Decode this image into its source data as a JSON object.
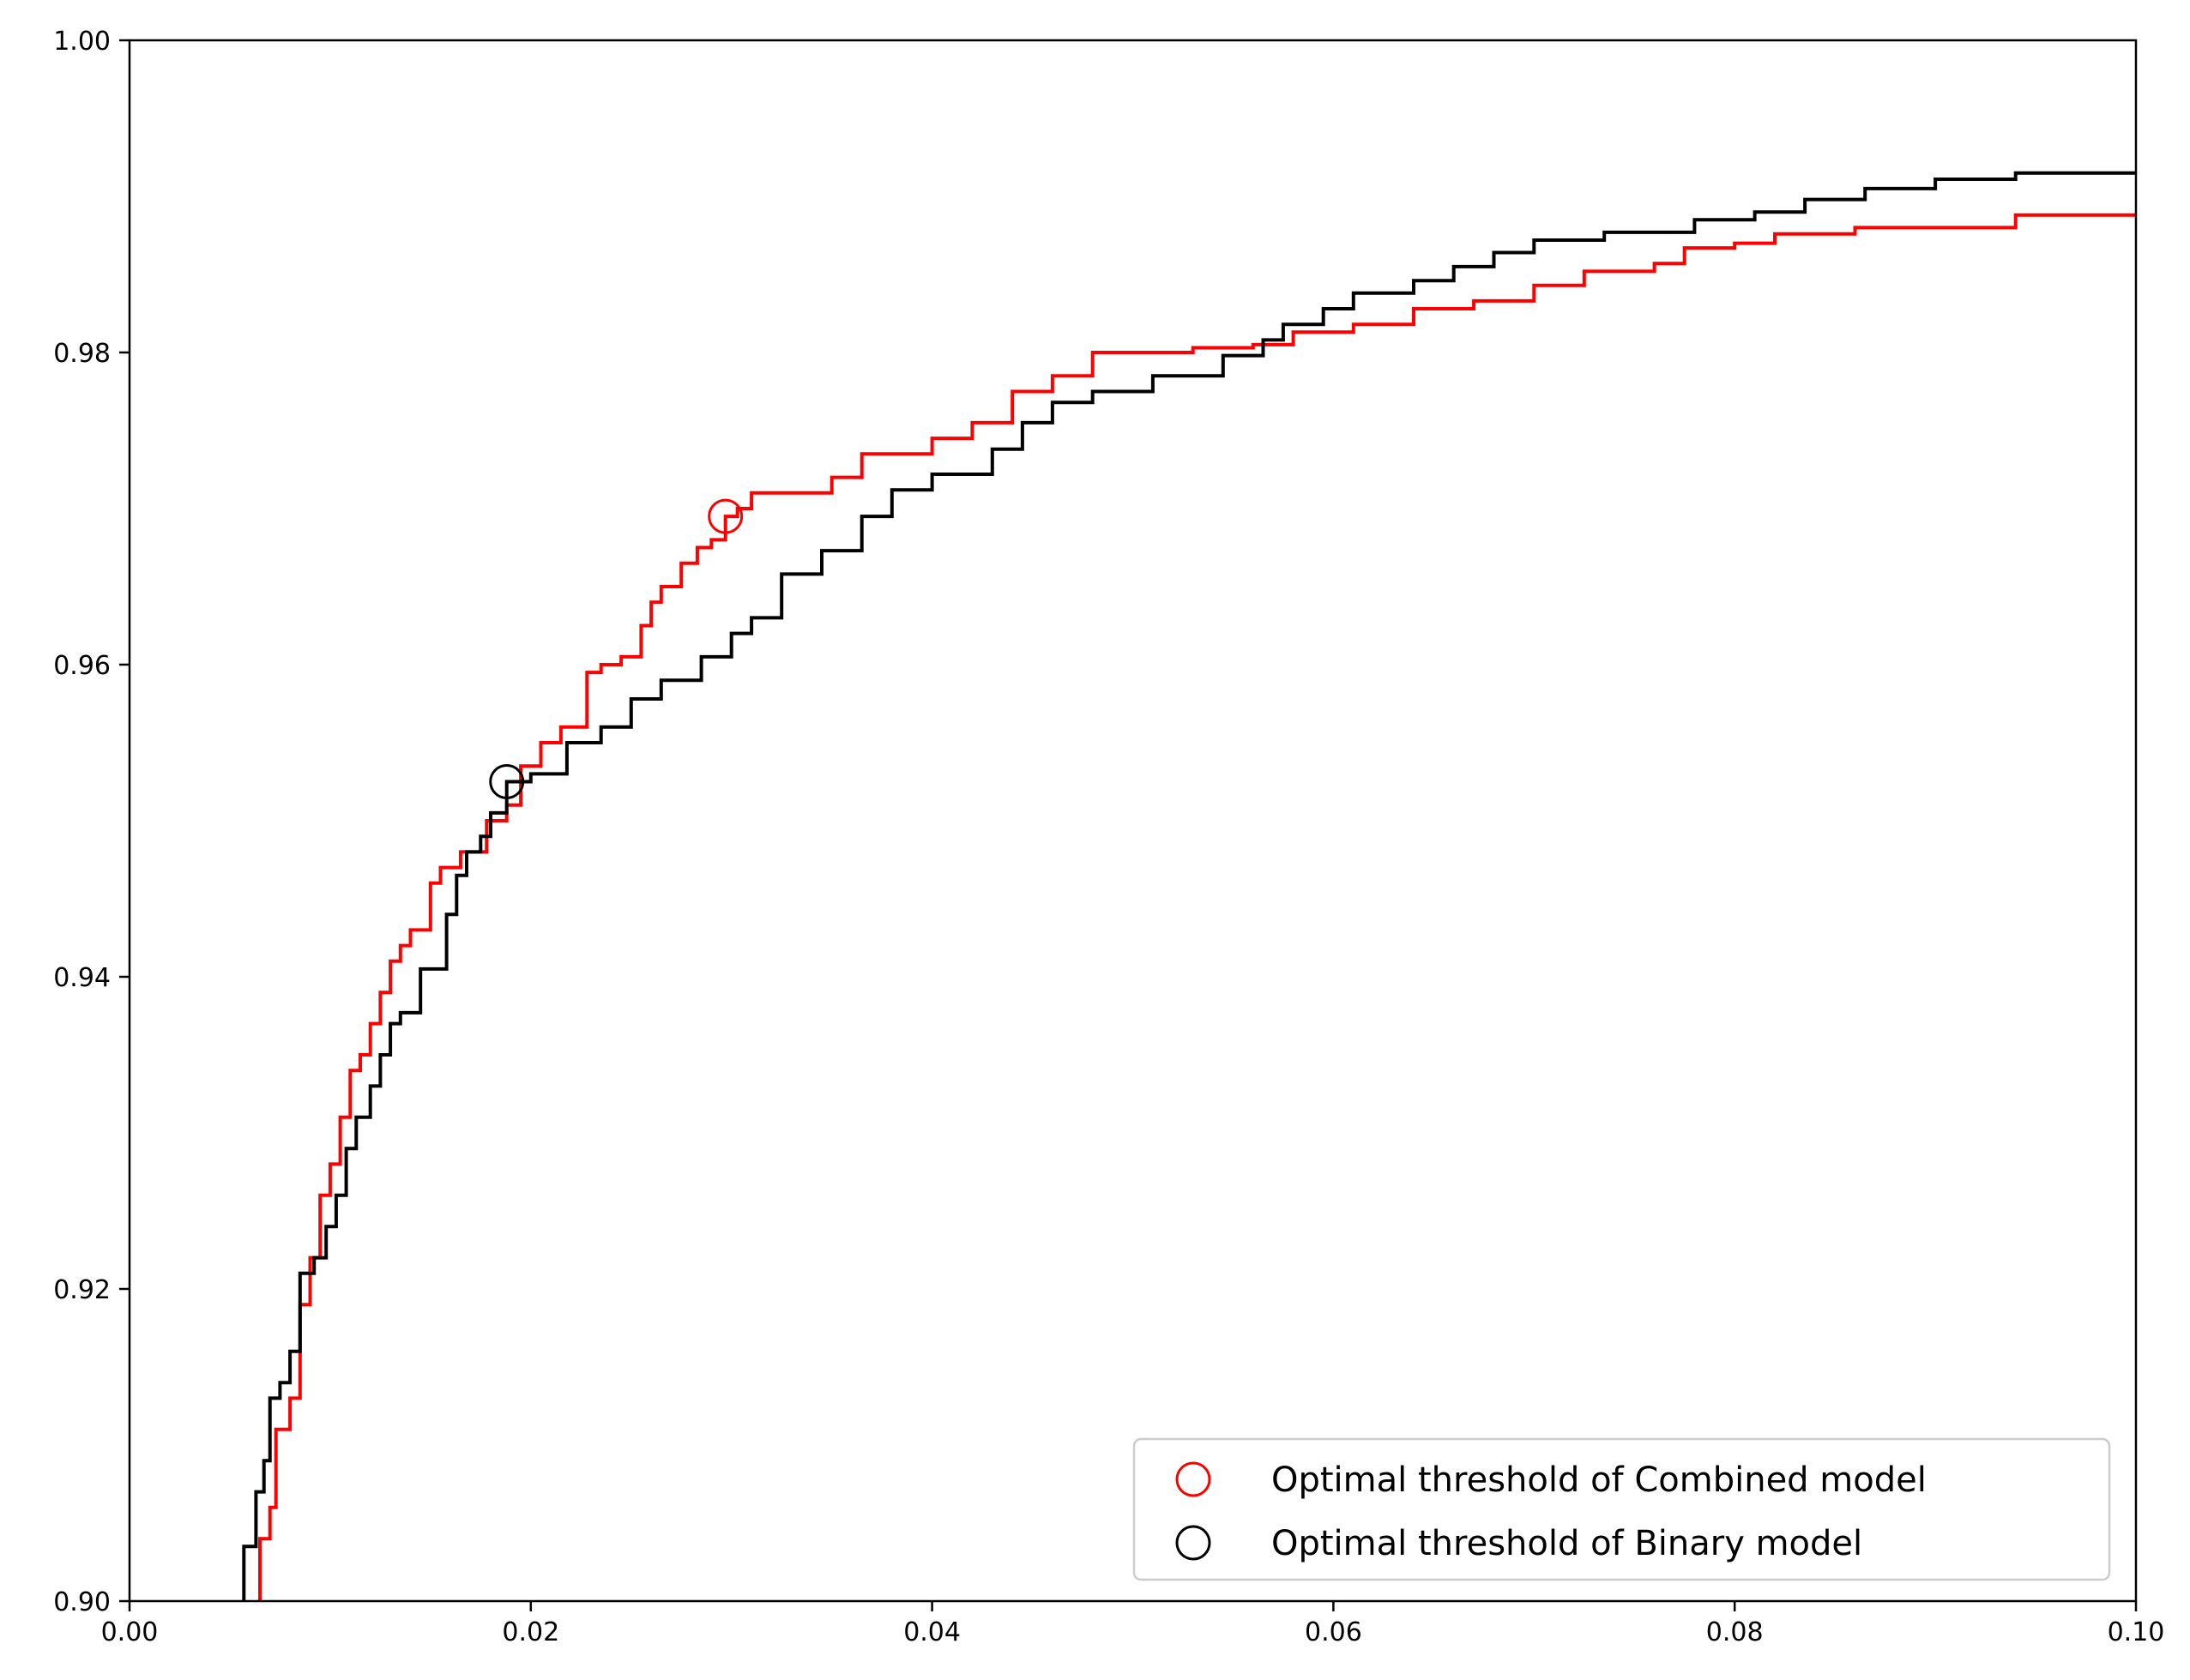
{
  "chart_data": {
    "type": "line",
    "title": "",
    "xlabel": "",
    "ylabel": "",
    "xlim": [
      0.0,
      0.1
    ],
    "ylim": [
      0.9,
      1.0
    ],
    "x_ticks": [
      0.0,
      0.02,
      0.04,
      0.06,
      0.08,
      0.1
    ],
    "x_tick_labels": [
      "0.00",
      "0.02",
      "0.04",
      "0.06",
      "0.08",
      "0.10"
    ],
    "y_ticks": [
      0.9,
      0.92,
      0.94,
      0.96,
      0.98,
      1.0
    ],
    "y_tick_labels": [
      "0.90",
      "0.92",
      "0.94",
      "0.96",
      "0.98",
      "1.00"
    ],
    "grid": false,
    "legend_position": "bottom-right",
    "step": true,
    "series": [
      {
        "color": "#ff0000",
        "points": [
          [
            0.0065,
            0.9
          ],
          [
            0.0065,
            0.904
          ],
          [
            0.007,
            0.904
          ],
          [
            0.007,
            0.906
          ],
          [
            0.0073,
            0.906
          ],
          [
            0.0073,
            0.911
          ],
          [
            0.008,
            0.911
          ],
          [
            0.008,
            0.913
          ],
          [
            0.0085,
            0.913
          ],
          [
            0.0085,
            0.919
          ],
          [
            0.009,
            0.919
          ],
          [
            0.009,
            0.922
          ],
          [
            0.0095,
            0.922
          ],
          [
            0.0095,
            0.926
          ],
          [
            0.01,
            0.926
          ],
          [
            0.01,
            0.928
          ],
          [
            0.0105,
            0.928
          ],
          [
            0.0105,
            0.931
          ],
          [
            0.011,
            0.931
          ],
          [
            0.011,
            0.934
          ],
          [
            0.0115,
            0.934
          ],
          [
            0.0115,
            0.935
          ],
          [
            0.012,
            0.935
          ],
          [
            0.012,
            0.937
          ],
          [
            0.0125,
            0.937
          ],
          [
            0.0125,
            0.939
          ],
          [
            0.013,
            0.939
          ],
          [
            0.013,
            0.941
          ],
          [
            0.0135,
            0.941
          ],
          [
            0.0135,
            0.942
          ],
          [
            0.014,
            0.942
          ],
          [
            0.014,
            0.943
          ],
          [
            0.015,
            0.943
          ],
          [
            0.015,
            0.946
          ],
          [
            0.0155,
            0.946
          ],
          [
            0.0155,
            0.947
          ],
          [
            0.0165,
            0.947
          ],
          [
            0.0165,
            0.948
          ],
          [
            0.0178,
            0.948
          ],
          [
            0.0178,
            0.95
          ],
          [
            0.0188,
            0.95
          ],
          [
            0.0188,
            0.951
          ],
          [
            0.0195,
            0.951
          ],
          [
            0.0195,
            0.9535
          ],
          [
            0.0205,
            0.9535
          ],
          [
            0.0205,
            0.955
          ],
          [
            0.0215,
            0.955
          ],
          [
            0.0215,
            0.956
          ],
          [
            0.0228,
            0.956
          ],
          [
            0.0228,
            0.957
          ],
          [
            0.0228,
            0.9595
          ],
          [
            0.0235,
            0.9595
          ],
          [
            0.0235,
            0.96
          ],
          [
            0.0245,
            0.96
          ],
          [
            0.0245,
            0.9605
          ],
          [
            0.0255,
            0.9605
          ],
          [
            0.0255,
            0.9625
          ],
          [
            0.026,
            0.9625
          ],
          [
            0.026,
            0.964
          ],
          [
            0.0265,
            0.964
          ],
          [
            0.0265,
            0.965
          ],
          [
            0.0275,
            0.965
          ],
          [
            0.0275,
            0.9665
          ],
          [
            0.0283,
            0.9665
          ],
          [
            0.0283,
            0.9675
          ],
          [
            0.029,
            0.9675
          ],
          [
            0.029,
            0.968
          ],
          [
            0.0297,
            0.968
          ],
          [
            0.0297,
            0.9695
          ],
          [
            0.0303,
            0.9695
          ],
          [
            0.0303,
            0.97
          ],
          [
            0.031,
            0.97
          ],
          [
            0.031,
            0.971
          ],
          [
            0.035,
            0.971
          ],
          [
            0.035,
            0.972
          ],
          [
            0.0365,
            0.972
          ],
          [
            0.0365,
            0.9735
          ],
          [
            0.04,
            0.9735
          ],
          [
            0.04,
            0.9745
          ],
          [
            0.042,
            0.9745
          ],
          [
            0.042,
            0.9755
          ],
          [
            0.044,
            0.9755
          ],
          [
            0.044,
            0.9775
          ],
          [
            0.046,
            0.9775
          ],
          [
            0.046,
            0.9785
          ],
          [
            0.048,
            0.9785
          ],
          [
            0.048,
            0.98
          ],
          [
            0.053,
            0.98
          ],
          [
            0.053,
            0.9803
          ],
          [
            0.056,
            0.9803
          ],
          [
            0.056,
            0.9805
          ],
          [
            0.058,
            0.9805
          ],
          [
            0.058,
            0.9813
          ],
          [
            0.061,
            0.9813
          ],
          [
            0.061,
            0.9818
          ],
          [
            0.064,
            0.9818
          ],
          [
            0.064,
            0.9828
          ],
          [
            0.067,
            0.9828
          ],
          [
            0.067,
            0.9833
          ],
          [
            0.07,
            0.9833
          ],
          [
            0.07,
            0.9843
          ],
          [
            0.0725,
            0.9843
          ],
          [
            0.0725,
            0.9852
          ],
          [
            0.076,
            0.9852
          ],
          [
            0.076,
            0.9857
          ],
          [
            0.0775,
            0.9857
          ],
          [
            0.0775,
            0.9867
          ],
          [
            0.08,
            0.9867
          ],
          [
            0.08,
            0.987
          ],
          [
            0.082,
            0.987
          ],
          [
            0.082,
            0.9876
          ],
          [
            0.086,
            0.9876
          ],
          [
            0.086,
            0.988
          ],
          [
            0.094,
            0.988
          ],
          [
            0.094,
            0.9888
          ],
          [
            0.1,
            0.9888
          ]
        ]
      },
      {
        "color": "#000000",
        "points": [
          [
            0.0057,
            0.9
          ],
          [
            0.0057,
            0.9035
          ],
          [
            0.0063,
            0.9035
          ],
          [
            0.0063,
            0.907
          ],
          [
            0.0067,
            0.907
          ],
          [
            0.0067,
            0.909
          ],
          [
            0.007,
            0.909
          ],
          [
            0.007,
            0.913
          ],
          [
            0.0075,
            0.913
          ],
          [
            0.0075,
            0.914
          ],
          [
            0.008,
            0.914
          ],
          [
            0.008,
            0.916
          ],
          [
            0.0085,
            0.916
          ],
          [
            0.0085,
            0.921
          ],
          [
            0.0092,
            0.921
          ],
          [
            0.0092,
            0.922
          ],
          [
            0.0098,
            0.922
          ],
          [
            0.0098,
            0.924
          ],
          [
            0.0103,
            0.924
          ],
          [
            0.0103,
            0.926
          ],
          [
            0.0108,
            0.926
          ],
          [
            0.0108,
            0.929
          ],
          [
            0.0113,
            0.929
          ],
          [
            0.0113,
            0.931
          ],
          [
            0.012,
            0.931
          ],
          [
            0.012,
            0.933
          ],
          [
            0.0125,
            0.933
          ],
          [
            0.0125,
            0.935
          ],
          [
            0.013,
            0.935
          ],
          [
            0.013,
            0.937
          ],
          [
            0.0135,
            0.937
          ],
          [
            0.0135,
            0.9377
          ],
          [
            0.0145,
            0.9377
          ],
          [
            0.0145,
            0.9405
          ],
          [
            0.0158,
            0.9405
          ],
          [
            0.0158,
            0.944
          ],
          [
            0.0163,
            0.944
          ],
          [
            0.0163,
            0.9465
          ],
          [
            0.0168,
            0.9465
          ],
          [
            0.0168,
            0.948
          ],
          [
            0.0175,
            0.948
          ],
          [
            0.0175,
            0.949
          ],
          [
            0.018,
            0.949
          ],
          [
            0.018,
            0.9505
          ],
          [
            0.0188,
            0.9505
          ],
          [
            0.0188,
            0.9525
          ],
          [
            0.02,
            0.9525
          ],
          [
            0.02,
            0.953
          ],
          [
            0.0218,
            0.953
          ],
          [
            0.0218,
            0.955
          ],
          [
            0.0235,
            0.955
          ],
          [
            0.0235,
            0.956
          ],
          [
            0.025,
            0.956
          ],
          [
            0.025,
            0.9578
          ],
          [
            0.0265,
            0.9578
          ],
          [
            0.0265,
            0.959
          ],
          [
            0.0285,
            0.959
          ],
          [
            0.0285,
            0.9605
          ],
          [
            0.03,
            0.9605
          ],
          [
            0.03,
            0.962
          ],
          [
            0.031,
            0.962
          ],
          [
            0.031,
            0.963
          ],
          [
            0.0325,
            0.963
          ],
          [
            0.0325,
            0.9658
          ],
          [
            0.0345,
            0.9658
          ],
          [
            0.0345,
            0.9673
          ],
          [
            0.0365,
            0.9673
          ],
          [
            0.0365,
            0.9695
          ],
          [
            0.038,
            0.9695
          ],
          [
            0.038,
            0.9712
          ],
          [
            0.04,
            0.9712
          ],
          [
            0.04,
            0.9722
          ],
          [
            0.043,
            0.9722
          ],
          [
            0.043,
            0.9738
          ],
          [
            0.0445,
            0.9738
          ],
          [
            0.0445,
            0.9755
          ],
          [
            0.046,
            0.9755
          ],
          [
            0.046,
            0.9768
          ],
          [
            0.048,
            0.9768
          ],
          [
            0.048,
            0.9775
          ],
          [
            0.051,
            0.9775
          ],
          [
            0.051,
            0.9785
          ],
          [
            0.0545,
            0.9785
          ],
          [
            0.0545,
            0.9798
          ],
          [
            0.0565,
            0.9798
          ],
          [
            0.0565,
            0.9808
          ],
          [
            0.0575,
            0.9808
          ],
          [
            0.0575,
            0.9818
          ],
          [
            0.0595,
            0.9818
          ],
          [
            0.0595,
            0.9828
          ],
          [
            0.061,
            0.9828
          ],
          [
            0.061,
            0.9838
          ],
          [
            0.064,
            0.9838
          ],
          [
            0.064,
            0.9846
          ],
          [
            0.066,
            0.9846
          ],
          [
            0.066,
            0.9855
          ],
          [
            0.068,
            0.9855
          ],
          [
            0.068,
            0.9864
          ],
          [
            0.07,
            0.9864
          ],
          [
            0.07,
            0.9872
          ],
          [
            0.0735,
            0.9872
          ],
          [
            0.0735,
            0.9877
          ],
          [
            0.078,
            0.9877
          ],
          [
            0.078,
            0.9885
          ],
          [
            0.081,
            0.9885
          ],
          [
            0.081,
            0.989
          ],
          [
            0.0835,
            0.989
          ],
          [
            0.0835,
            0.9898
          ],
          [
            0.0865,
            0.9898
          ],
          [
            0.0865,
            0.9905
          ],
          [
            0.09,
            0.9905
          ],
          [
            0.09,
            0.9911
          ],
          [
            0.094,
            0.9911
          ],
          [
            0.094,
            0.9915
          ],
          [
            0.1,
            0.9915
          ]
        ]
      }
    ],
    "markers": [
      {
        "label": "Optimal threshold of Combined model",
        "x": 0.0297,
        "y": 0.9695,
        "color": "#ff0000"
      },
      {
        "label": "Optimal threshold of Binary model",
        "x": 0.0188,
        "y": 0.9525,
        "color": "#000000"
      }
    ]
  }
}
